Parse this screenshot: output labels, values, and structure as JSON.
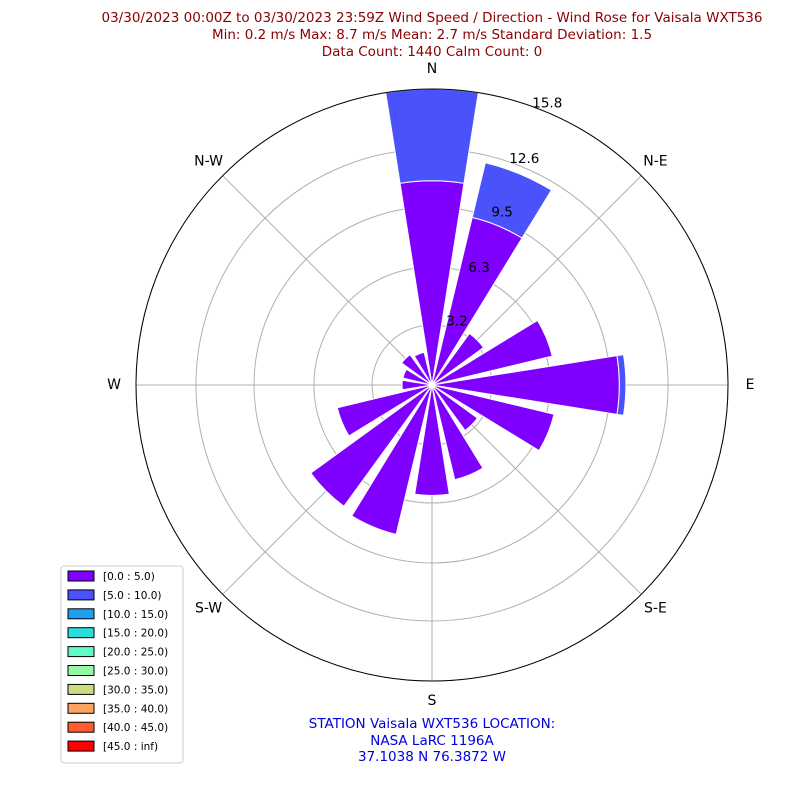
{
  "chart_data": {
    "type": "wind-rose",
    "title_lines": [
      "03/30/2023 00:00Z to 03/30/2023 23:59Z Wind Speed / Direction - Wind Rose for Vaisala WXT536",
      "Min: 0.2 m/s   Max: 8.7 m/s   Mean: 2.7 m/s  Standard Deviation: 1.5",
      "Data Count: 1440  Calm Count:  0"
    ],
    "direction_labels": [
      "N",
      "N-E",
      "E",
      "S-E",
      "S",
      "S-W",
      "W",
      "N-W"
    ],
    "ring_values": [
      "3.2",
      "6.3",
      "9.5",
      "12.6",
      "15.8"
    ],
    "rmax": 15.8,
    "sector_count": 16,
    "sectors": [
      {
        "dir_deg": 0,
        "bins": [
          10.9,
          4.9
        ]
      },
      {
        "dir_deg": 22.5,
        "bins": [
          9.2,
          3.0
        ]
      },
      {
        "dir_deg": 45,
        "bins": [
          3.4,
          0.0
        ]
      },
      {
        "dir_deg": 67.5,
        "bins": [
          6.6,
          0.0
        ]
      },
      {
        "dir_deg": 90,
        "bins": [
          10.0,
          0.35
        ]
      },
      {
        "dir_deg": 112.5,
        "bins": [
          6.7,
          0.0
        ]
      },
      {
        "dir_deg": 135,
        "bins": [
          3.0,
          0.0
        ]
      },
      {
        "dir_deg": 157.5,
        "bins": [
          5.2,
          0.0
        ]
      },
      {
        "dir_deg": 180,
        "bins": [
          5.9,
          0.0
        ]
      },
      {
        "dir_deg": 202.5,
        "bins": [
          8.2,
          0.0
        ]
      },
      {
        "dir_deg": 225,
        "bins": [
          8.0,
          0.0
        ]
      },
      {
        "dir_deg": 247.5,
        "bins": [
          5.2,
          0.0
        ]
      },
      {
        "dir_deg": 270,
        "bins": [
          1.6,
          0.0
        ]
      },
      {
        "dir_deg": 292.5,
        "bins": [
          1.6,
          0.0
        ]
      },
      {
        "dir_deg": 315,
        "bins": [
          2.0,
          0.0
        ]
      },
      {
        "dir_deg": 337.5,
        "bins": [
          1.8,
          0.0
        ]
      }
    ],
    "legend": [
      {
        "label": "[0.0 : 5.0)",
        "color": "#7f00ff"
      },
      {
        "label": "[5.0 : 10.0)",
        "color": "#4a52fb"
      },
      {
        "label": "[10.0 : 15.0)",
        "color": "#1ea0ef"
      },
      {
        "label": "[15.0 : 20.0)",
        "color": "#2adddd"
      },
      {
        "label": "[20.0 : 25.0)",
        "color": "#62fbc3"
      },
      {
        "label": "[25.0 : 30.0)",
        "color": "#92f8a4"
      },
      {
        "label": "[30.0 : 35.0)",
        "color": "#c8dc80"
      },
      {
        "label": "[35.0 : 40.0)",
        "color": "#fca262"
      },
      {
        "label": "[40.0 : 45.0)",
        "color": "#ff5a30"
      },
      {
        "label": "[45.0 : inf)",
        "color": "#ff0000"
      }
    ],
    "grid": true,
    "legend_position": "lower-left"
  },
  "station": {
    "lines": [
      "STATION Vaisala WXT536 LOCATION:",
      "NASA LaRC 1196A",
      "37.1038 N 76.3872 W"
    ]
  }
}
